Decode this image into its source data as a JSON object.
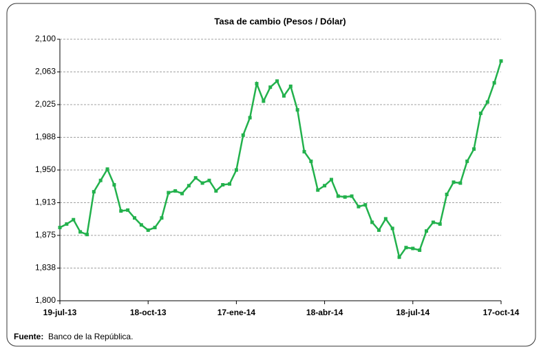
{
  "chart_data": {
    "type": "line",
    "title": "Tasa de cambio (Pesos / Dólar)",
    "x": [
      "2013-07-19",
      "2013-07-26",
      "2013-08-02",
      "2013-08-09",
      "2013-08-16",
      "2013-08-23",
      "2013-08-30",
      "2013-09-06",
      "2013-09-13",
      "2013-09-20",
      "2013-09-27",
      "2013-10-04",
      "2013-10-11",
      "2013-10-18",
      "2013-10-25",
      "2013-11-01",
      "2013-11-08",
      "2013-11-15",
      "2013-11-22",
      "2013-11-29",
      "2013-12-06",
      "2013-12-13",
      "2013-12-20",
      "2013-12-27",
      "2014-01-03",
      "2014-01-10",
      "2014-01-17",
      "2014-01-24",
      "2014-01-31",
      "2014-02-07",
      "2014-02-14",
      "2014-02-21",
      "2014-02-28",
      "2014-03-07",
      "2014-03-14",
      "2014-03-21",
      "2014-03-28",
      "2014-04-04",
      "2014-04-11",
      "2014-04-18",
      "2014-04-25",
      "2014-05-02",
      "2014-05-09",
      "2014-05-16",
      "2014-05-23",
      "2014-05-30",
      "2014-06-06",
      "2014-06-13",
      "2014-06-20",
      "2014-06-27",
      "2014-07-04",
      "2014-07-11",
      "2014-07-18",
      "2014-07-25",
      "2014-08-01",
      "2014-08-08",
      "2014-08-15",
      "2014-08-22",
      "2014-08-29",
      "2014-09-05",
      "2014-09-12",
      "2014-09-19",
      "2014-09-26",
      "2014-10-03",
      "2014-10-10",
      "2014-10-17"
    ],
    "series": [
      {
        "color": "#22b14c",
        "values": [
          1884,
          1888,
          1893,
          1879,
          1876,
          1925,
          1938,
          1951,
          1933,
          1903,
          1904,
          1895,
          1887,
          1881,
          1884,
          1895,
          1924,
          1926,
          1923,
          1932,
          1941,
          1935,
          1938,
          1926,
          1933,
          1934,
          1950,
          1990,
          2010,
          2049,
          2029,
          2045,
          2052,
          2035,
          2046,
          2019,
          1971,
          1960,
          1927,
          1932,
          1939,
          1920,
          1919,
          1920,
          1908,
          1910,
          1890,
          1881,
          1894,
          1883,
          1850,
          1861,
          1860,
          1858,
          1880,
          1890,
          1888,
          1922,
          1936,
          1935,
          1960,
          1974,
          2015,
          2028,
          2050,
          2075
        ]
      }
    ],
    "xlim": [
      "2013-07-19",
      "2014-10-17"
    ],
    "xticks": [
      {
        "value": "2013-07-19",
        "label": "19-jul-13"
      },
      {
        "value": "2013-10-18",
        "label": "18-oct-13"
      },
      {
        "value": "2014-01-17",
        "label": "17-ene-14"
      },
      {
        "value": "2014-04-18",
        "label": "18-abr-14"
      },
      {
        "value": "2014-07-18",
        "label": "18-jul-14"
      },
      {
        "value": "2014-10-17",
        "label": "17-oct-14"
      }
    ],
    "ylim": [
      1800,
      2100
    ],
    "yticks": [
      {
        "value": 1800,
        "label": "1,800"
      },
      {
        "value": 1837.5,
        "label": "1,838"
      },
      {
        "value": 1875,
        "label": "1,875"
      },
      {
        "value": 1912.5,
        "label": "1,913"
      },
      {
        "value": 1950,
        "label": "1,950"
      },
      {
        "value": 1987.5,
        "label": "1,988"
      },
      {
        "value": 2025,
        "label": "2,025"
      },
      {
        "value": 2062.5,
        "label": "2,063"
      },
      {
        "value": 2100,
        "label": "2,100"
      }
    ],
    "grid": true,
    "source": {
      "label": "Fuente:",
      "text": "Banco de la República."
    }
  }
}
